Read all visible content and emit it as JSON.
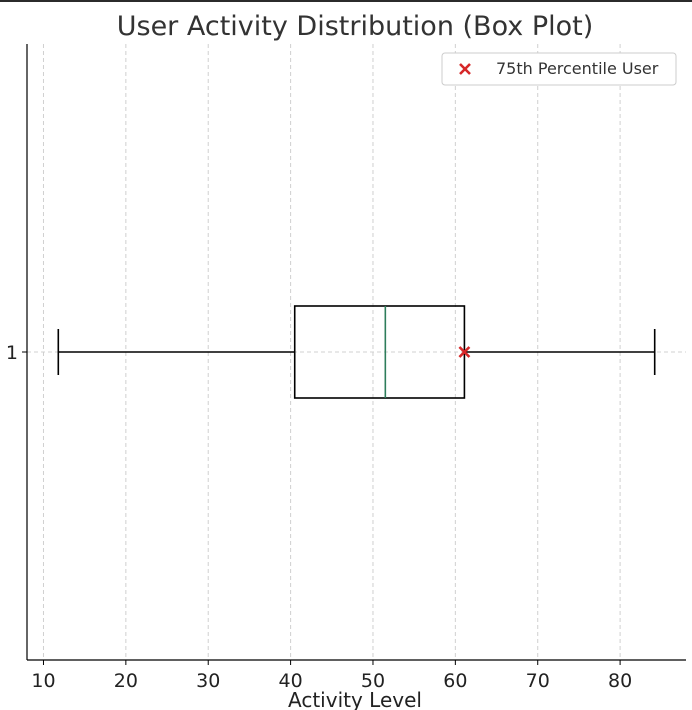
{
  "chart_data": {
    "type": "boxplot",
    "title": "User Activity Distribution (Box Plot)",
    "xlabel": "Activity Level",
    "ylabel": "",
    "orientation": "horizontal",
    "xlim": [
      8,
      88
    ],
    "xticks": [
      10,
      20,
      30,
      40,
      50,
      60,
      70,
      80
    ],
    "categories": [
      "1"
    ],
    "box": {
      "whisker_low": 11.8,
      "q1": 40.5,
      "median": 51.5,
      "q3": 61.1,
      "whisker_high": 84.2
    },
    "marker": {
      "label": "75th Percentile User",
      "x": 61.1,
      "category": "1",
      "symbol": "x"
    },
    "grid": true,
    "legend_position": "upper right",
    "colors": {
      "box": "#000000",
      "median": "#2e7d5b",
      "marker": "#d62728",
      "grid": "#d0d0d0"
    }
  }
}
